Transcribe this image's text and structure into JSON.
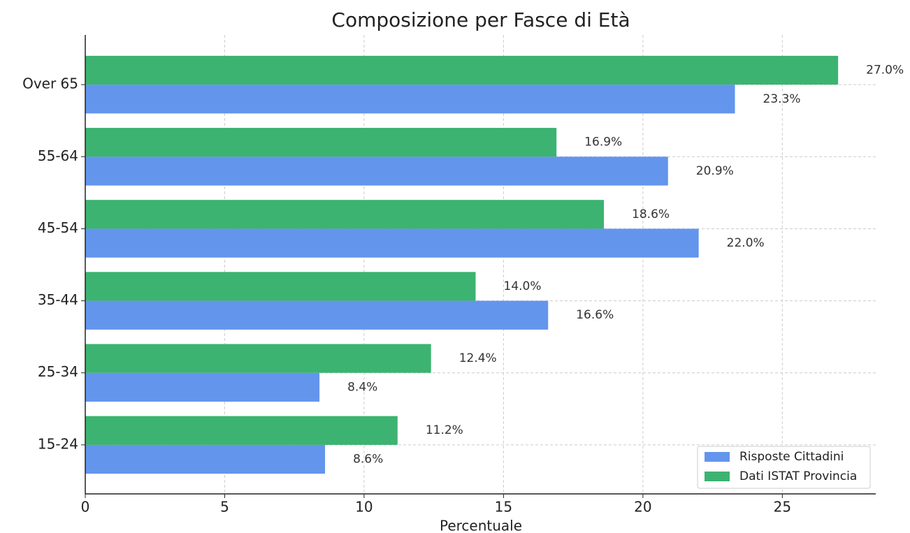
{
  "chart_data": {
    "type": "barh",
    "title": "Composizione per Fasce di Età",
    "xlabel": "Percentuale",
    "categories": [
      "15-24",
      "25-34",
      "35-44",
      "45-54",
      "55-64",
      "Over 65"
    ],
    "series": [
      {
        "name": "Risposte Cittadini",
        "color": "#6495ed",
        "values": [
          8.6,
          8.4,
          16.6,
          22.0,
          20.9,
          23.3
        ],
        "value_labels": [
          "8.6%",
          "8.4%",
          "16.6%",
          "22.0%",
          "20.9%",
          "23.3%"
        ]
      },
      {
        "name": "Dati ISTAT Provincia",
        "color": "#3cb371",
        "values": [
          11.2,
          12.4,
          14.0,
          18.6,
          16.9,
          27.0
        ],
        "value_labels": [
          "11.2%",
          "12.4%",
          "14.0%",
          "18.6%",
          "16.9%",
          "27.0%"
        ]
      }
    ],
    "xlim": [
      0,
      28.35
    ],
    "xticks": [
      0,
      5,
      10,
      15,
      20,
      25
    ],
    "grid": true,
    "legend": "lower right"
  }
}
